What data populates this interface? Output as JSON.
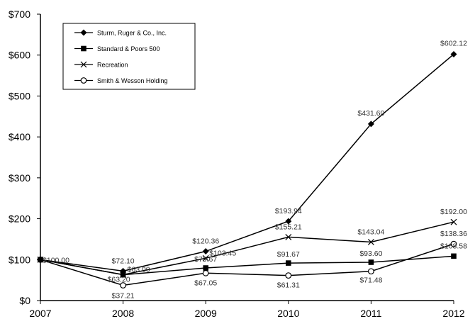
{
  "chart_data": {
    "type": "line",
    "title": "",
    "xlabel": "",
    "ylabel": "",
    "x": [
      "2007",
      "2008",
      "2009",
      "2010",
      "2011",
      "2012"
    ],
    "ylim": [
      0,
      700
    ],
    "y_ticks": [
      0,
      100,
      200,
      300,
      400,
      500,
      600,
      700
    ],
    "y_tick_labels": [
      "$0",
      "$100",
      "$200",
      "$300",
      "$400",
      "$500",
      "$600",
      "$700"
    ],
    "grid": false,
    "legend_position": "top-left",
    "series": [
      {
        "name": "Sturm, Ruger & Co., Inc.",
        "marker": "diamond",
        "values": [
          100.0,
          72.1,
          120.36,
          193.94,
          431.6,
          602.12
        ],
        "labels": [
          "$100.00",
          "$72.10",
          "$120.36",
          "$193.94",
          "$431.60",
          "$602.12"
        ]
      },
      {
        "name": "Standard & Poors 500",
        "marker": "square",
        "values": [
          100.0,
          63.0,
          79.67,
          91.67,
          93.6,
          108.58
        ],
        "labels": [
          "",
          "$63.00",
          "$79.67",
          "$91.67",
          "$93.60",
          "$108.58"
        ]
      },
      {
        "name": "Recreation",
        "marker": "x",
        "values": [
          100.0,
          63.2,
          103.45,
          155.21,
          143.04,
          192.0
        ],
        "labels": [
          "",
          "$63.20",
          "$103.45",
          "$155.21",
          "$143.04",
          "$192.00"
        ]
      },
      {
        "name": "Smith & Wesson Holding",
        "marker": "circle",
        "values": [
          100.0,
          37.21,
          67.05,
          61.31,
          71.48,
          138.36
        ],
        "labels": [
          "",
          "$37.21",
          "$67.05",
          "$61.31",
          "$71.48",
          "$138.36"
        ]
      }
    ]
  },
  "colors": {
    "line": "#000000",
    "label": "#333333",
    "background": "#ffffff"
  }
}
